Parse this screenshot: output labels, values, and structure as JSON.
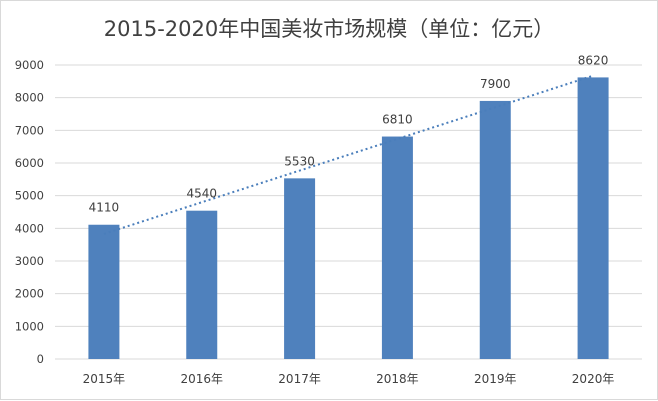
{
  "chart_data": {
    "type": "bar",
    "title": "2015-2020年中国美妆市场规模（单位：亿元）",
    "categories": [
      "2015年",
      "2016年",
      "2017年",
      "2018年",
      "2019年",
      "2020年"
    ],
    "values": [
      4110,
      4540,
      5530,
      6810,
      7900,
      8620
    ],
    "data_labels": [
      "4110",
      "4540",
      "5530",
      "6810",
      "7900",
      "8620"
    ],
    "ylim": [
      0,
      9000
    ],
    "yticks": [
      "0",
      "1000",
      "2000",
      "3000",
      "4000",
      "5000",
      "6000",
      "7000",
      "8000",
      "9000"
    ],
    "grid": true,
    "trendline": "linear, dotted",
    "xlabel": "",
    "ylabel": "",
    "colors": {
      "bar": "#4f81bd",
      "trendline": "#4a7ebb",
      "grid": "#d9d9d9"
    }
  }
}
